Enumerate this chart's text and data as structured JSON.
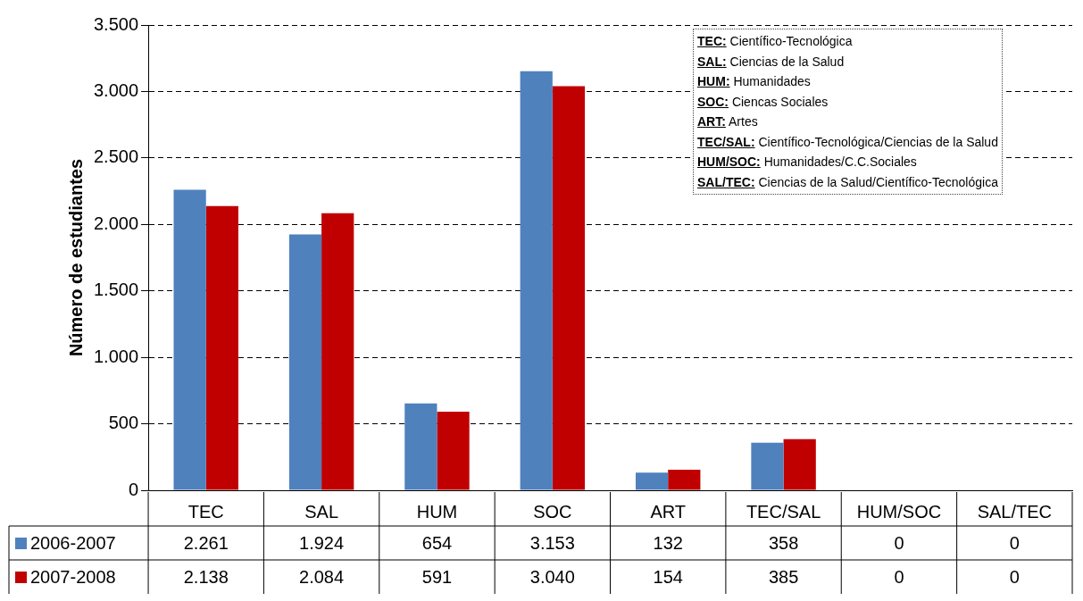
{
  "chart_data": {
    "type": "bar",
    "ylabel": "Número de estudiantes",
    "categories": [
      "TEC",
      "SAL",
      "HUM",
      "SOC",
      "ART",
      "TEC/SAL",
      "HUM/SOC",
      "SAL/TEC"
    ],
    "series": [
      {
        "name": "2006-2007",
        "color": "#4f81bd",
        "values": [
          2261,
          1924,
          654,
          3153,
          132,
          358,
          0,
          0
        ],
        "value_labels": [
          "2.261",
          "1.924",
          "654",
          "3.153",
          "132",
          "358",
          "0",
          "0"
        ]
      },
      {
        "name": "2007-2008",
        "color": "#c00000",
        "values": [
          2138,
          2084,
          591,
          3040,
          154,
          385,
          0,
          0
        ],
        "value_labels": [
          "2.138",
          "2.084",
          "591",
          "3.040",
          "154",
          "385",
          "0",
          "0"
        ]
      }
    ],
    "ylim": [
      0,
      3500
    ],
    "yticks": [
      0,
      {
        "value": 500,
        "label": "500"
      },
      {
        "value": 1000,
        "label": "1.000"
      },
      {
        "value": 1500,
        "label": "1.500"
      },
      {
        "value": 2000,
        "label": "2.000"
      },
      {
        "value": 2500,
        "label": "2.500"
      },
      {
        "value": 3000,
        "label": "3.000"
      },
      {
        "value": 3500,
        "label": "3.500"
      }
    ],
    "grid": "y",
    "legend": "bottom",
    "annotations": [
      "TEC: Científico-Tecnológica",
      "SAL: Ciencias de la Salud",
      "HUM: Humanidades",
      "SOC: Ciencas Sociales",
      "ART: Artes",
      "TEC/SAL: Científico-Tecnológica/Ciencias de la Salud",
      "HUM/SOC: Humanidades/C.C.Sociales",
      "SAL/TEC: Ciencias de la Salud/Científico-Tecnológica"
    ]
  }
}
